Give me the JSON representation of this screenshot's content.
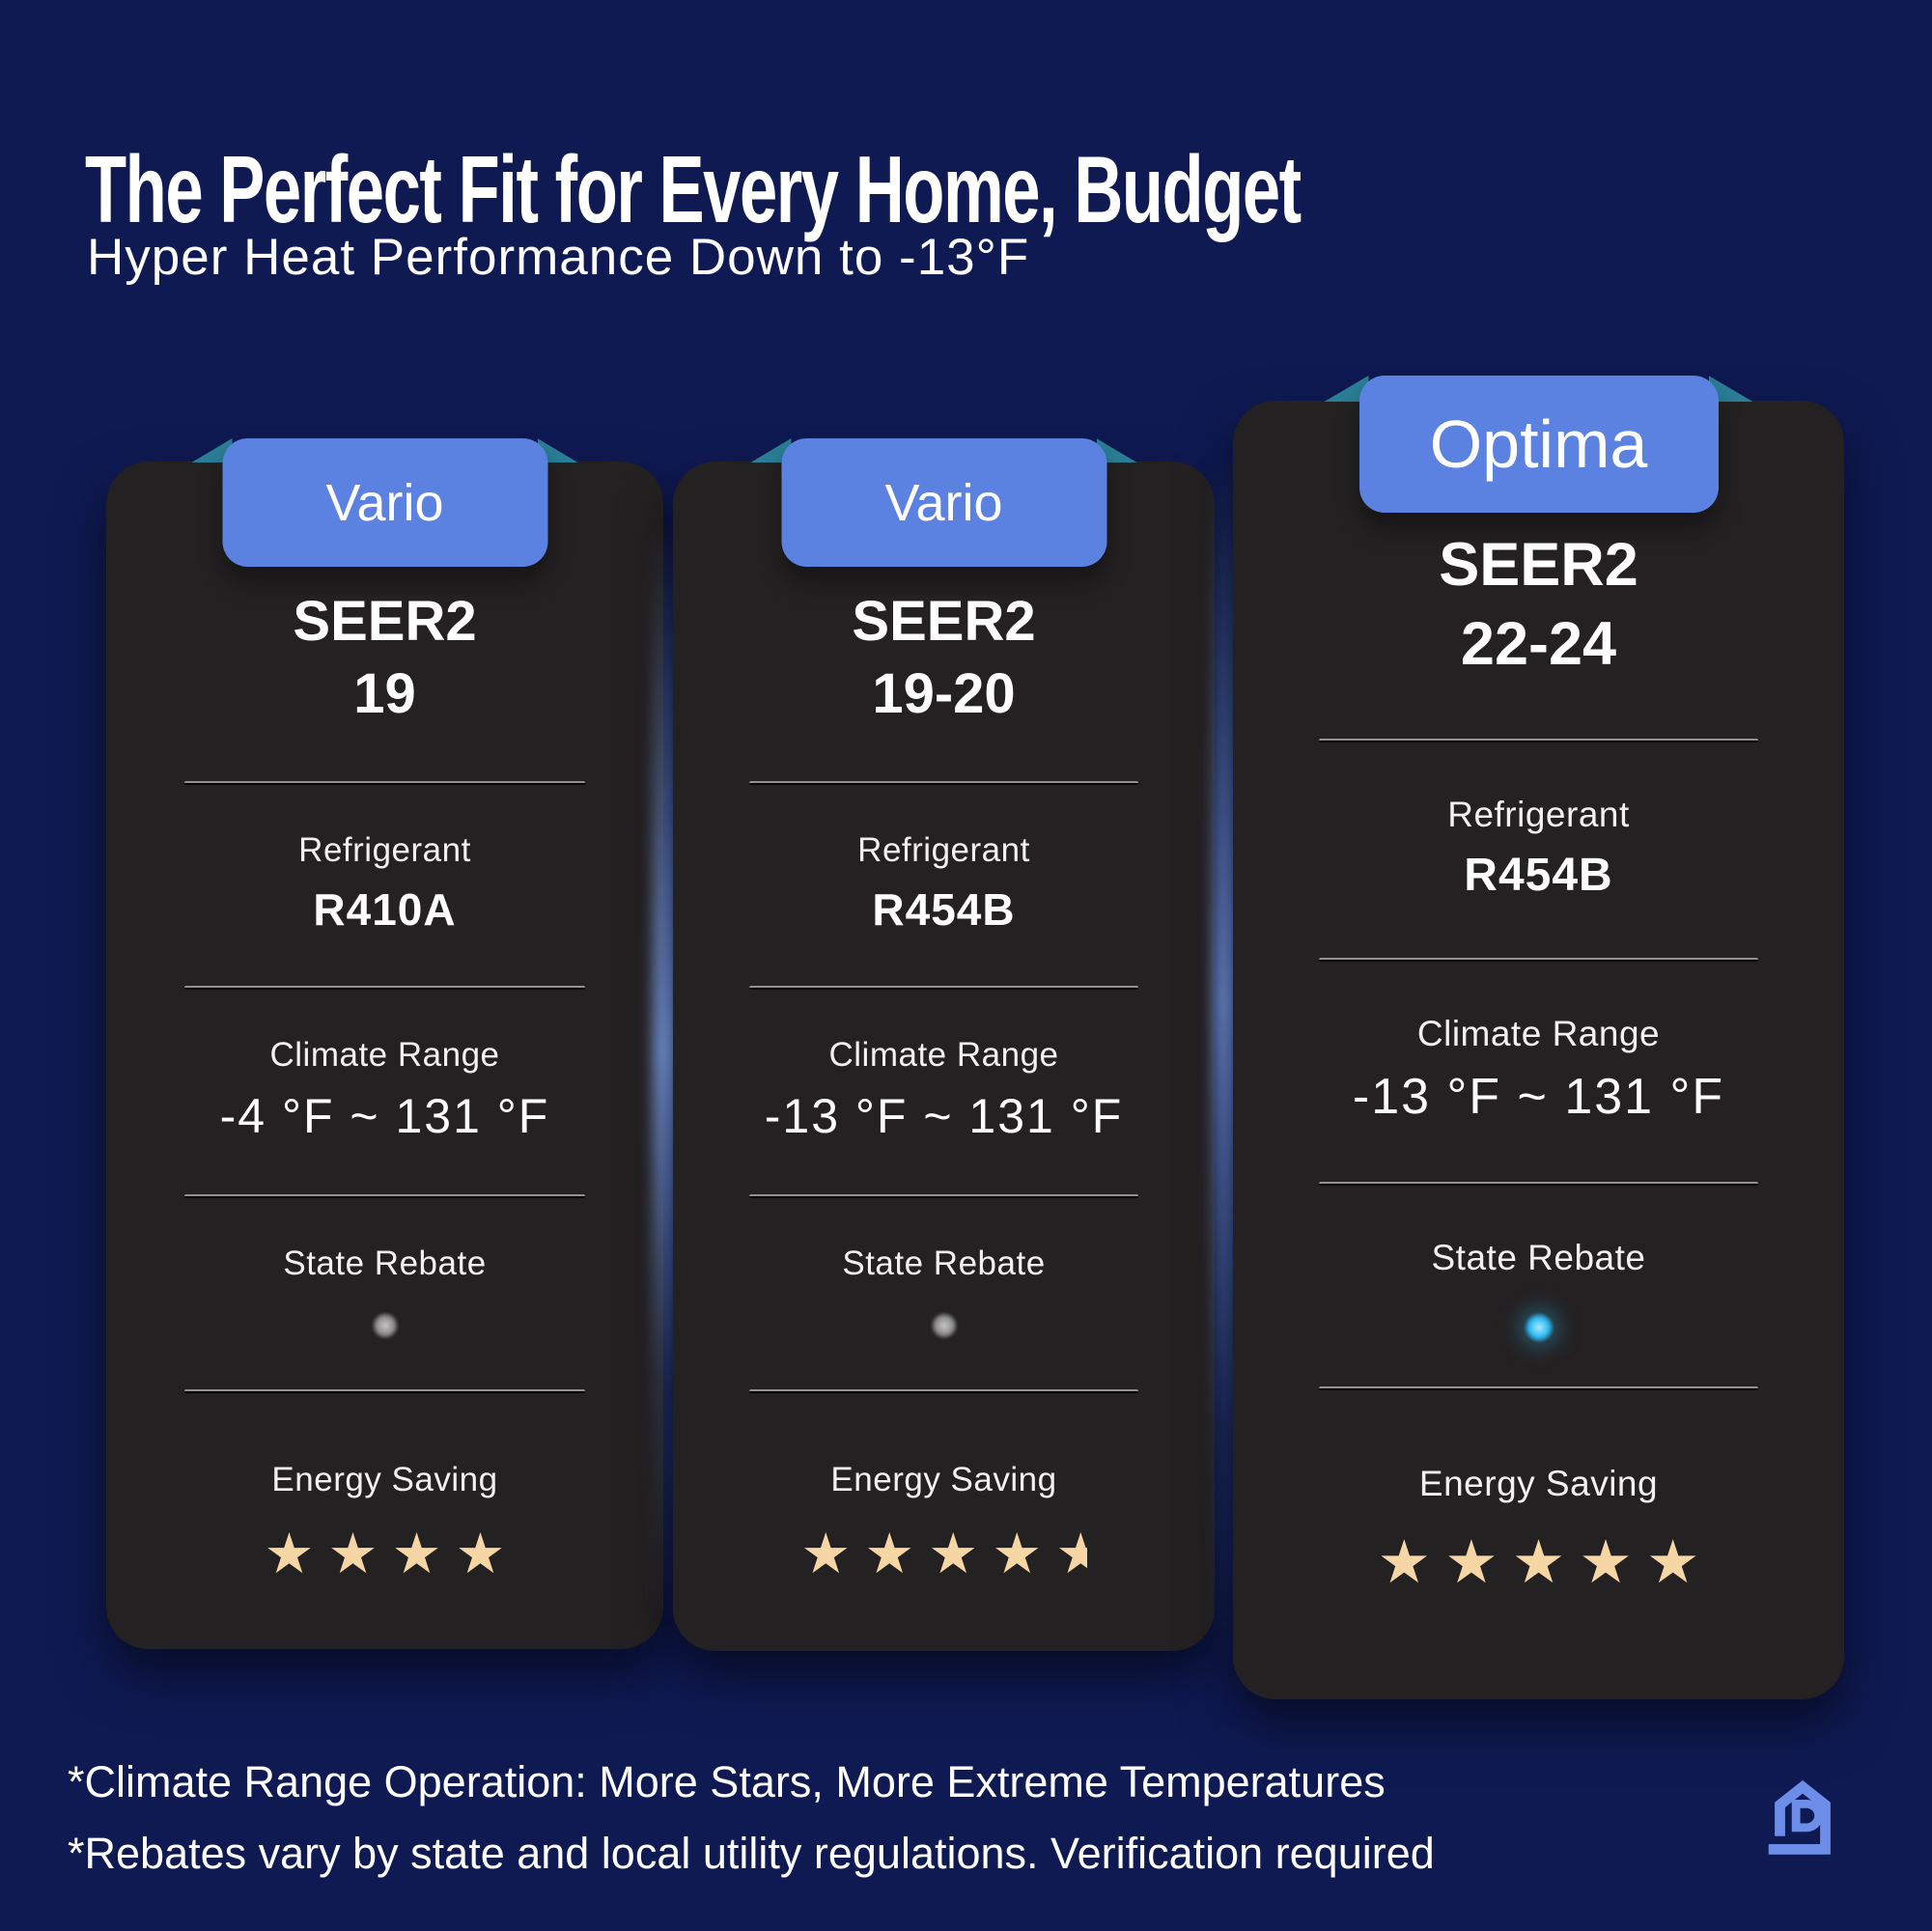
{
  "header": {
    "title": "The Perfect Fit for Every Home, Budget",
    "subtitle": "Hyper Heat Performance Down to -13°F"
  },
  "cards": [
    {
      "name": "Vario",
      "seer2_label": "SEER2",
      "seer2_value": "19",
      "refrigerant_label": "Refrigerant",
      "refrigerant": "R410A",
      "climate_label": "Climate Range",
      "climate_range": "-4 °F ~ 131 °F",
      "rebate_label": "State Rebate",
      "rebate_available": false,
      "energy_label": "Energy Saving",
      "stars": 4
    },
    {
      "name": "Vario",
      "seer2_label": "SEER2",
      "seer2_value": "19-20",
      "refrigerant_label": "Refrigerant",
      "refrigerant": "R454B",
      "climate_label": "Climate Range",
      "climate_range": "-13 °F ~ 131 °F",
      "rebate_label": "State Rebate",
      "rebate_available": false,
      "energy_label": "Energy Saving",
      "stars": 4.5
    },
    {
      "name": "Optima",
      "seer2_label": "SEER2",
      "seer2_value": "22-24",
      "refrigerant_label": "Refrigerant",
      "refrigerant": "R454B",
      "climate_label": "Climate Range",
      "climate_range": "-13 °F ~ 131 °F",
      "rebate_label": "State Rebate",
      "rebate_available": true,
      "energy_label": "Energy Saving",
      "stars": 5
    }
  ],
  "footer": {
    "lines": [
      "*Climate Range Operation: More Stars, More Extreme Temperatures",
      "*Rebates vary by state and local utility regulations. Verification required"
    ],
    "logo_icon": "house-d-logo"
  },
  "colors": {
    "background": "#0f1a53",
    "card": "#242122",
    "tab_blue": "#5b81e1",
    "ribbon_fold_teal": "#2a7e96",
    "star": "#f6d6a4",
    "rebate_on": "#2cb9f2",
    "rebate_off": "#8d8d8d",
    "logo_blue": "#6c8ee9",
    "text": "#ffffff"
  }
}
